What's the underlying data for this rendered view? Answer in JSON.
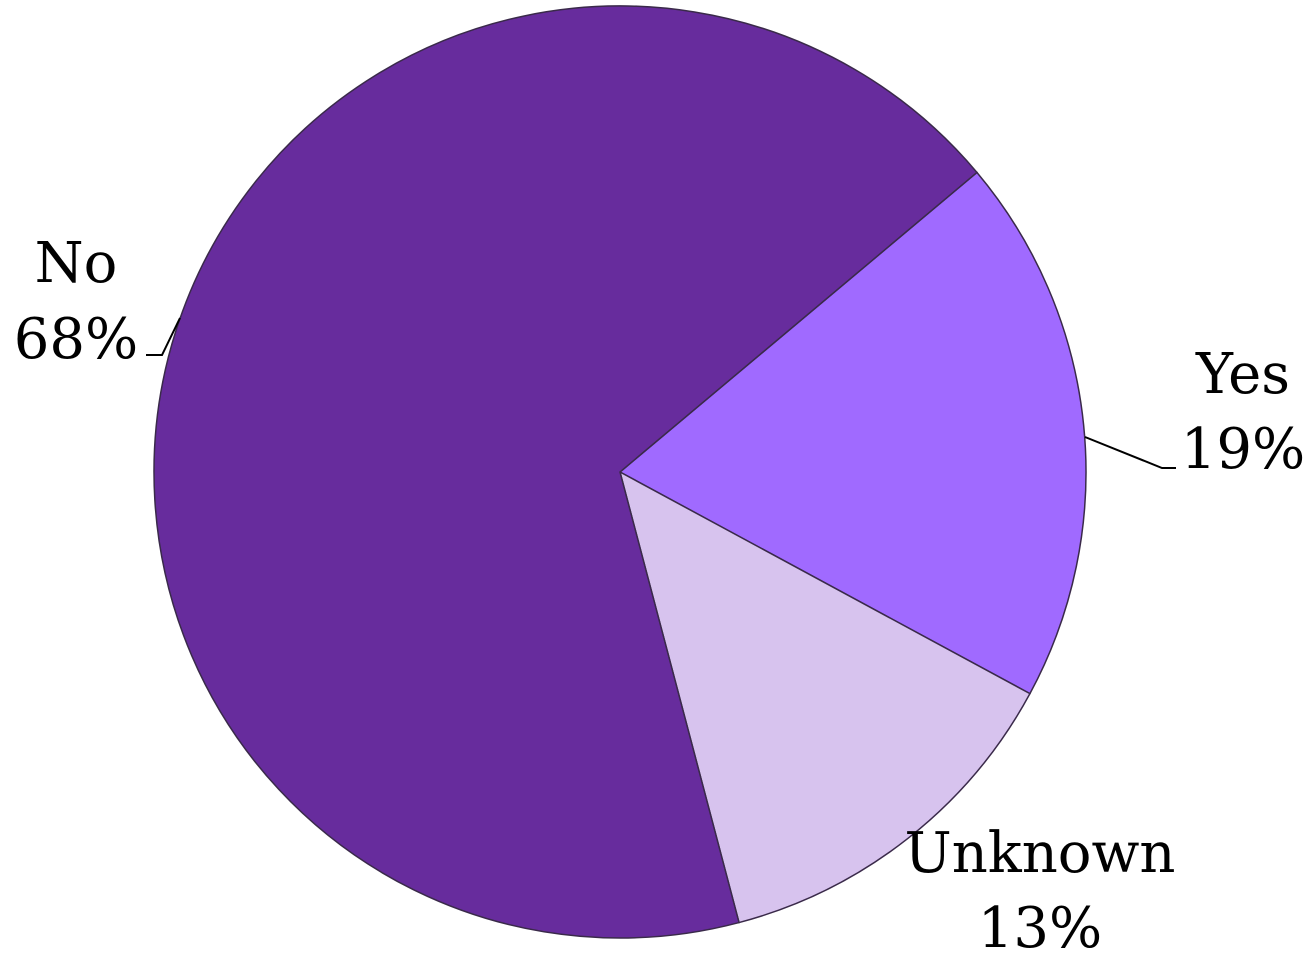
{
  "chart_data": {
    "type": "pie",
    "slices": [
      {
        "label": "Yes",
        "value": 19,
        "value_label": "19%",
        "color": "#a06aff"
      },
      {
        "label": "Unknown",
        "value": 13,
        "value_label": "13%",
        "color": "#d7c3ee"
      },
      {
        "label": "No",
        "value": 68,
        "value_label": "68%",
        "color": "#672c9d"
      }
    ],
    "legend": "none"
  }
}
